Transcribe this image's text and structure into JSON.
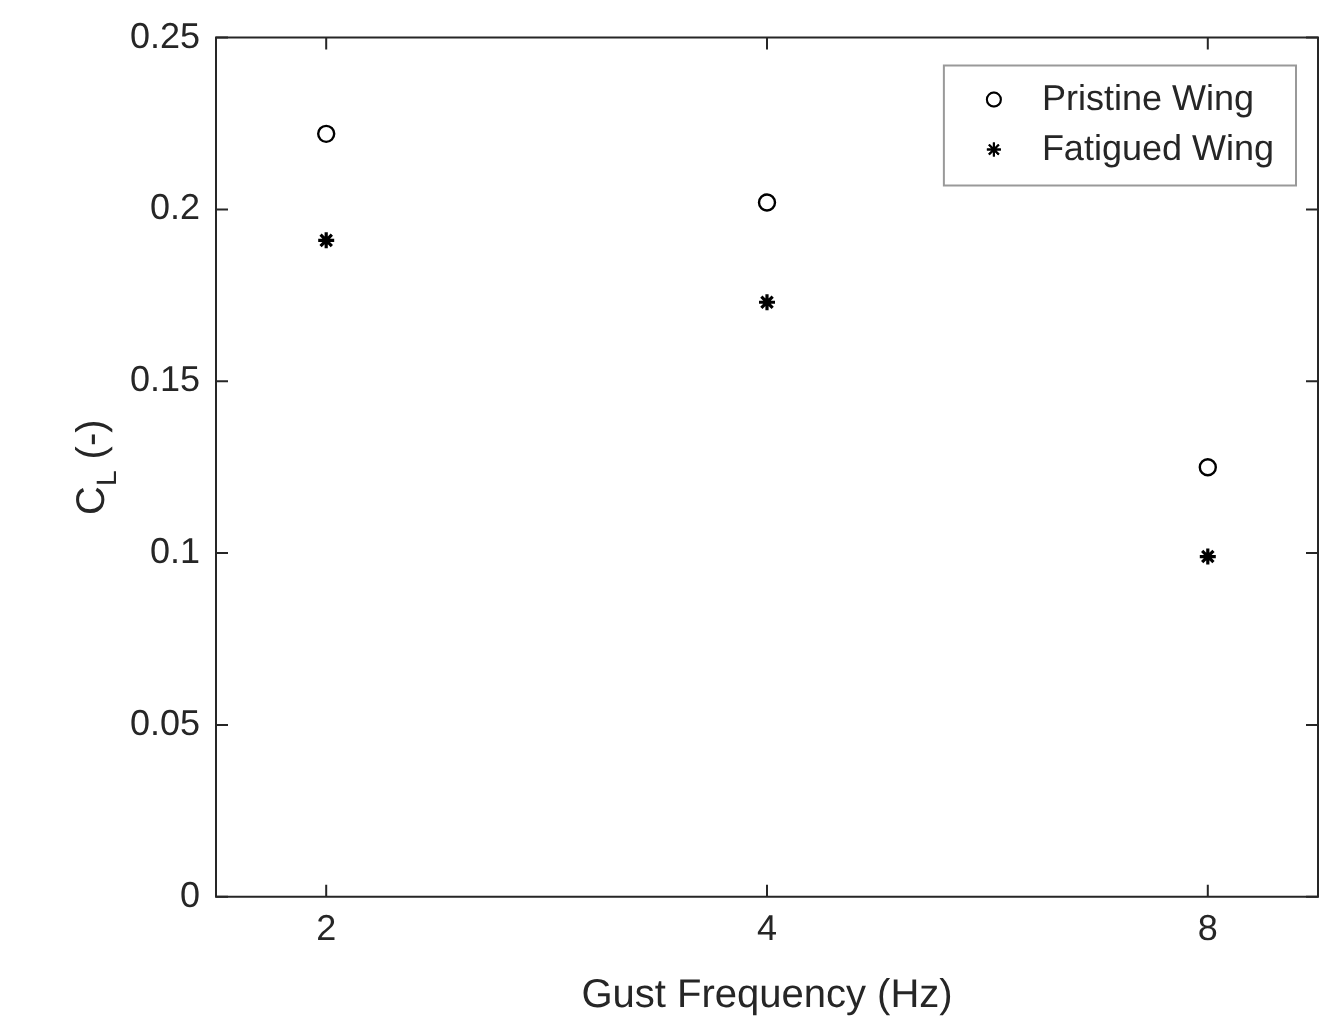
{
  "chart_data": {
    "type": "scatter",
    "xlabel": "Gust Frequency (Hz)",
    "ylabel": "C$_{L}$ (-)",
    "categories": [
      "2",
      "4",
      "8"
    ],
    "series": [
      {
        "name": "Pristine Wing",
        "color": "#000000",
        "marker": "circle",
        "values": [
          0.222,
          0.202,
          0.125
        ]
      },
      {
        "name": "Fatigued Wing",
        "color": "#000000",
        "marker": "cross",
        "values": [
          0.191,
          0.173,
          0.099
        ]
      }
    ],
    "ylim": [
      0,
      0.25
    ],
    "yticks": [
      0,
      0.05,
      0.1,
      0.15,
      0.2,
      0.25
    ],
    "grid": false,
    "legend": "top right"
  }
}
